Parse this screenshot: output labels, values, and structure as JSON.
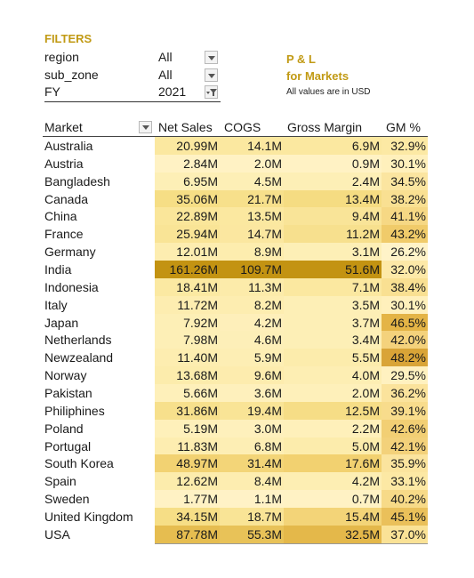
{
  "filters": {
    "title": "FILTERS",
    "rows": [
      {
        "label": "region",
        "value": "All"
      },
      {
        "label": "sub_zone",
        "value": "All"
      },
      {
        "label": "FY",
        "value": "2021"
      }
    ]
  },
  "report": {
    "title_line1": "P & L",
    "title_line2": "for Markets",
    "note": "All values are in USD"
  },
  "table": {
    "headers": {
      "market": "Market",
      "net_sales": "Net Sales",
      "cogs": "COGS",
      "gross_margin": "Gross Margin",
      "gm_pct": "GM %"
    },
    "rows": [
      {
        "market": "Australia",
        "ns": "20.99M",
        "cogs": "14.1M",
        "gm": "6.9M",
        "gmp": "32.9%",
        "c_ns": "#fbe8a0",
        "c_cogs": "#fbe8a0",
        "c_gm": "#fbe8a0",
        "c_gmp": "#fce9a4"
      },
      {
        "market": "Austria",
        "ns": "2.84M",
        "cogs": "2.0M",
        "gm": "0.9M",
        "gmp": "30.1%",
        "c_ns": "#fff2c4",
        "c_cogs": "#fff2c4",
        "c_gm": "#fff2c4",
        "c_gmp": "#fff0bc"
      },
      {
        "market": "Bangladesh",
        "ns": "6.95M",
        "cogs": "4.5M",
        "gm": "2.4M",
        "gmp": "34.5%",
        "c_ns": "#fdefb6",
        "c_cogs": "#fdefb6",
        "c_gm": "#fdefb6",
        "c_gmp": "#fbe5a0"
      },
      {
        "market": "Canada",
        "ns": "35.06M",
        "cogs": "21.7M",
        "gm": "13.4M",
        "gmp": "38.2%",
        "c_ns": "#f6de85",
        "c_cogs": "#f7e08b",
        "c_gm": "#f5dc82",
        "c_gmp": "#f9e092"
      },
      {
        "market": "China",
        "ns": "22.89M",
        "cogs": "13.5M",
        "gm": "9.4M",
        "gmp": "41.1%",
        "c_ns": "#fae69a",
        "c_cogs": "#fbe8a0",
        "c_gm": "#f9e498",
        "c_gmp": "#f6d884"
      },
      {
        "market": "France",
        "ns": "25.94M",
        "cogs": "14.7M",
        "gm": "11.2M",
        "gmp": "43.2%",
        "c_ns": "#f9e496",
        "c_cogs": "#fbe7a0",
        "c_gm": "#f7e08e",
        "c_gmp": "#f0cb6a"
      },
      {
        "market": "Germany",
        "ns": "12.01M",
        "cogs": "8.9M",
        "gm": "3.1M",
        "gmp": "26.2%",
        "c_ns": "#fdedb0",
        "c_cogs": "#fdedae",
        "c_gm": "#fdefb6",
        "c_gmp": "#fff3c8"
      },
      {
        "market": "India",
        "ns": "161.26M",
        "cogs": "109.7M",
        "gm": "51.6M",
        "gmp": "32.0%",
        "c_ns": "#c39312",
        "c_cogs": "#c39312",
        "c_gm": "#c39312",
        "c_gmp": "#fde9a8"
      },
      {
        "market": "Indonesia",
        "ns": "18.41M",
        "cogs": "11.3M",
        "gm": "7.1M",
        "gmp": "38.4%",
        "c_ns": "#fbe9a2",
        "c_cogs": "#fcebaa",
        "c_gm": "#fbe8a0",
        "c_gmp": "#f9e092"
      },
      {
        "market": "Italy",
        "ns": "11.72M",
        "cogs": "8.2M",
        "gm": "3.5M",
        "gmp": "30.1%",
        "c_ns": "#fdedb0",
        "c_cogs": "#fdedb0",
        "c_gm": "#fdefb6",
        "c_gmp": "#fff0bc"
      },
      {
        "market": "Japan",
        "ns": "7.92M",
        "cogs": "4.2M",
        "gm": "3.7M",
        "gmp": "46.5%",
        "c_ns": "#fdefb6",
        "c_cogs": "#feefba",
        "c_gm": "#fdefb6",
        "c_gmp": "#e4b446"
      },
      {
        "market": "Netherlands",
        "ns": "7.98M",
        "cogs": "4.6M",
        "gm": "3.4M",
        "gmp": "42.0%",
        "c_ns": "#fdefb6",
        "c_cogs": "#fdefb8",
        "c_gm": "#fdefb6",
        "c_gmp": "#f4d27c"
      },
      {
        "market": "Newzealand",
        "ns": "11.40M",
        "cogs": "5.9M",
        "gm": "5.5M",
        "gmp": "48.2%",
        "c_ns": "#fdedb0",
        "c_cogs": "#fdeeb4",
        "c_gm": "#fcecac",
        "c_gmp": "#d9a437"
      },
      {
        "market": "Norway",
        "ns": "13.68M",
        "cogs": "9.6M",
        "gm": "4.0M",
        "gmp": "29.5%",
        "c_ns": "#fcecac",
        "c_cogs": "#fdecae",
        "c_gm": "#fdeeb3",
        "c_gmp": "#fff1c0"
      },
      {
        "market": "Pakistan",
        "ns": "5.66M",
        "cogs": "3.6M",
        "gm": "2.0M",
        "gmp": "36.2%",
        "c_ns": "#fef0ba",
        "c_cogs": "#fef0bc",
        "c_gm": "#fef0ba",
        "c_gmp": "#fbe39c"
      },
      {
        "market": "Philiphines",
        "ns": "31.86M",
        "cogs": "19.4M",
        "gm": "12.5M",
        "gmp": "39.1%",
        "c_ns": "#f7e08c",
        "c_cogs": "#f9e496",
        "c_gm": "#f6dd86",
        "c_gmp": "#f8dc8c"
      },
      {
        "market": "Poland",
        "ns": "5.19M",
        "cogs": "3.0M",
        "gm": "2.2M",
        "gmp": "42.6%",
        "c_ns": "#fef0ba",
        "c_cogs": "#fef0bc",
        "c_gm": "#fef0ba",
        "c_gmp": "#f2cf74"
      },
      {
        "market": "Portugal",
        "ns": "11.83M",
        "cogs": "6.8M",
        "gm": "5.0M",
        "gmp": "42.1%",
        "c_ns": "#fdedb0",
        "c_cogs": "#fdeeb4",
        "c_gm": "#fcecac",
        "c_gmp": "#f3d17a"
      },
      {
        "market": "South Korea",
        "ns": "48.97M",
        "cogs": "31.4M",
        "gm": "17.6M",
        "gmp": "35.9%",
        "c_ns": "#f2d272",
        "c_cogs": "#f3d578",
        "c_gm": "#f2d170",
        "c_gmp": "#fbe49e"
      },
      {
        "market": "Spain",
        "ns": "12.62M",
        "cogs": "8.4M",
        "gm": "4.2M",
        "gmp": "33.1%",
        "c_ns": "#fcecac",
        "c_cogs": "#fdedb0",
        "c_gm": "#fdeeb3",
        "c_gmp": "#fce8a4"
      },
      {
        "market": "Sweden",
        "ns": "1.77M",
        "cogs": "1.1M",
        "gm": "0.7M",
        "gmp": "40.2%",
        "c_ns": "#fff2c4",
        "c_cogs": "#fff2c6",
        "c_gm": "#fff2c4",
        "c_gmp": "#f7da88"
      },
      {
        "market": "United Kingdom",
        "ns": "34.15M",
        "cogs": "18.7M",
        "gm": "15.4M",
        "gmp": "45.1%",
        "c_ns": "#f6de86",
        "c_cogs": "#f9e496",
        "c_gm": "#f3d478",
        "c_gmp": "#eac05a"
      },
      {
        "market": "USA",
        "ns": "87.78M",
        "cogs": "55.3M",
        "gm": "32.5M",
        "gmp": "37.0%",
        "c_ns": "#e6bd50",
        "c_cogs": "#e8c258",
        "c_gm": "#e4b84a",
        "c_gmp": "#fae296"
      }
    ]
  }
}
